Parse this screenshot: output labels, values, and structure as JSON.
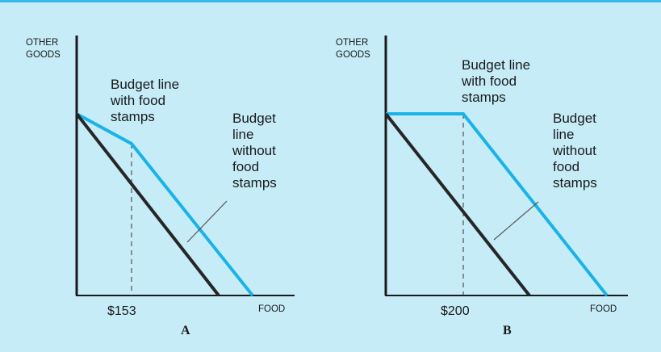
{
  "colors": {
    "background": "#c6ecf8",
    "accent": "#1ab3e8",
    "budget_without": "#262626",
    "axis": "#1a1a1a"
  },
  "panels": [
    {
      "panel_label": "A",
      "y_axis_label": [
        "OTHER",
        "GOODS"
      ],
      "x_axis_label": "FOOD",
      "tick_label": "$153",
      "with_label": [
        "Budget line",
        "with food",
        "stamps"
      ],
      "without_label": [
        "Budget",
        "line",
        "without",
        "food",
        "stamps"
      ]
    },
    {
      "panel_label": "B",
      "y_axis_label": [
        "OTHER",
        "GOODS"
      ],
      "x_axis_label": "FOOD",
      "tick_label": "$200",
      "with_label": [
        "Budget line",
        "with food",
        "stamps"
      ],
      "without_label": [
        "Budget",
        "line",
        "without",
        "food",
        "stamps"
      ]
    }
  ]
}
